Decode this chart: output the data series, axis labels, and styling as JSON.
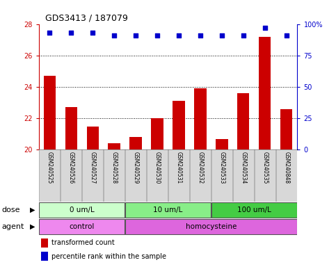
{
  "title": "GDS3413 / 187079",
  "samples": [
    "GSM240525",
    "GSM240526",
    "GSM240527",
    "GSM240528",
    "GSM240529",
    "GSM240530",
    "GSM240531",
    "GSM240532",
    "GSM240533",
    "GSM240534",
    "GSM240535",
    "GSM240848"
  ],
  "transformed_count": [
    24.7,
    22.7,
    21.5,
    20.4,
    20.8,
    22.0,
    23.1,
    23.9,
    20.7,
    23.6,
    27.2,
    22.6
  ],
  "percentile_rank": [
    93,
    93,
    93,
    91,
    91,
    91,
    91,
    91,
    91,
    91,
    97,
    91
  ],
  "ylim_left": [
    20,
    28
  ],
  "ylim_right": [
    0,
    100
  ],
  "yticks_left": [
    20,
    22,
    24,
    26,
    28
  ],
  "yticks_right": [
    0,
    25,
    50,
    75,
    100
  ],
  "bar_color": "#cc0000",
  "dot_color": "#0000cc",
  "bar_bottom": 20,
  "dose_groups": [
    {
      "label": "0 um/L",
      "start": 0,
      "end": 3,
      "color": "#ccffcc"
    },
    {
      "label": "10 um/L",
      "start": 4,
      "end": 7,
      "color": "#88ee88"
    },
    {
      "label": "100 um/L",
      "start": 8,
      "end": 11,
      "color": "#44cc44"
    }
  ],
  "agent_groups": [
    {
      "label": "control",
      "start": 0,
      "end": 3,
      "color": "#ee88ee"
    },
    {
      "label": "homocysteine",
      "start": 4,
      "end": 11,
      "color": "#dd66dd"
    }
  ],
  "legend_bar_color": "#cc0000",
  "legend_dot_color": "#0000cc",
  "legend_bar_label": "transformed count",
  "legend_dot_label": "percentile rank within the sample",
  "xlabel_dose": "dose",
  "xlabel_agent": "agent",
  "tick_color_left": "#cc0000",
  "tick_color_right": "#0000cc"
}
